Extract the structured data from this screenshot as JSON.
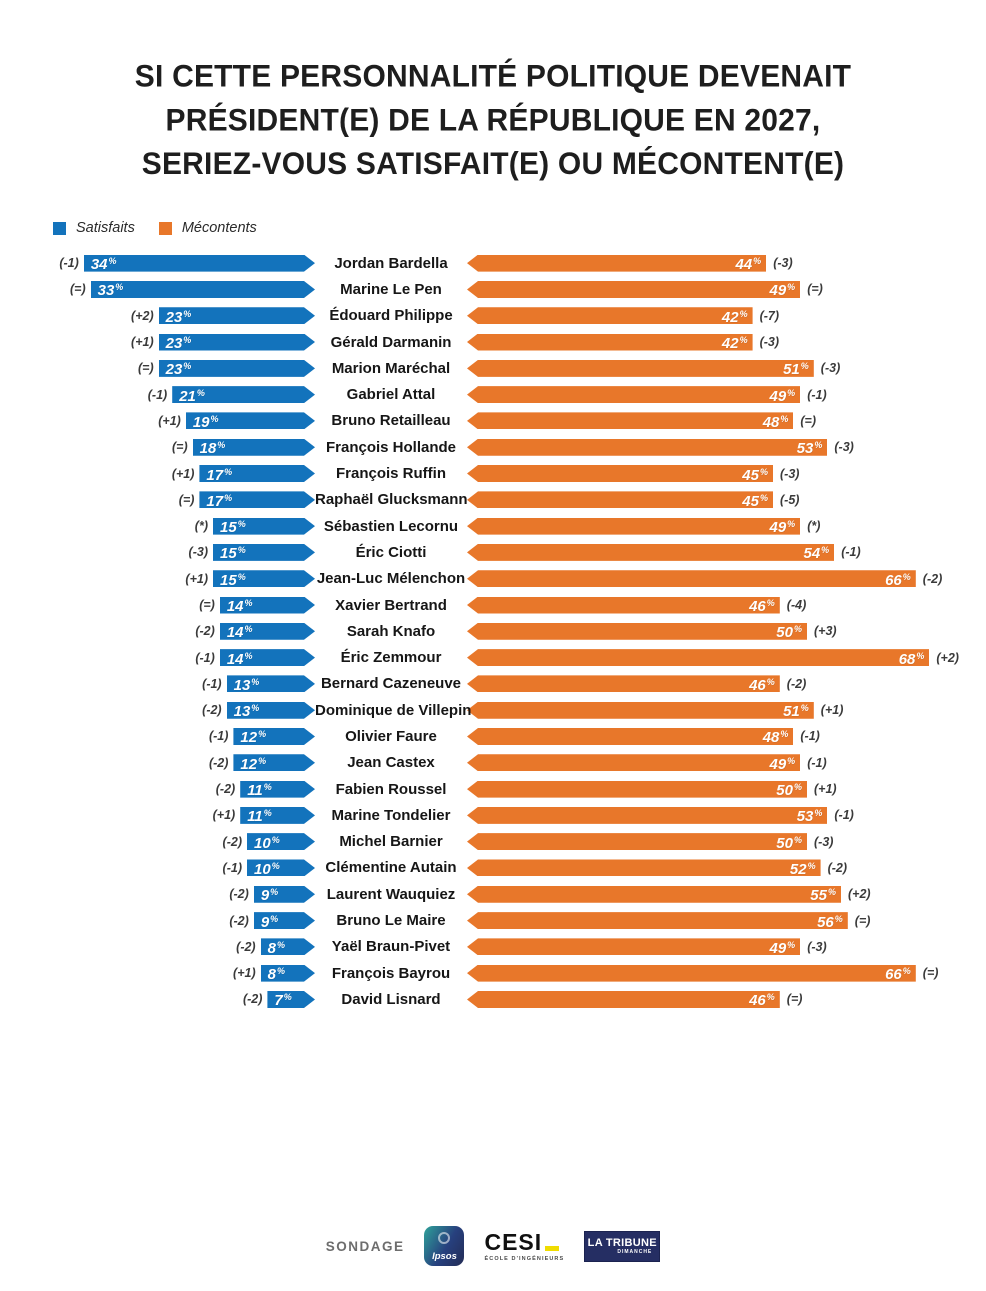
{
  "title": {
    "line1": "SI CETTE PERSONNALITÉ POLITIQUE DEVENAIT",
    "line2": "PRÉSIDENT(E) DE LA RÉPUBLIQUE EN 2027,",
    "line3": "SERIEZ-VOUS SATISFAIT(E) OU MÉCONTENT(E)"
  },
  "legend": {
    "satisfied_label": "Satisfaits",
    "unsatisfied_label": "Mécontents",
    "satisfied_color": "#1373BC",
    "unsatisfied_color": "#E8772A"
  },
  "chart_data": {
    "type": "bar",
    "orientation": "diverging-horizontal",
    "title": "Si cette personnalité politique devenait Président(e) de la République en 2027, seriez-vous satisfait(e) ou mécontent(e)",
    "unit": "%",
    "categories": [
      "Jordan Bardella",
      "Marine Le Pen",
      "Édouard Philippe",
      "Gérald Darmanin",
      "Marion Maréchal",
      "Gabriel Attal",
      "Bruno Retailleau",
      "François Hollande",
      "François Ruffin",
      "Raphaël Glucksmann",
      "Sébastien Lecornu",
      "Éric Ciotti",
      "Jean-Luc Mélenchon",
      "Xavier Bertrand",
      "Sarah Knafo",
      "Éric Zemmour",
      "Bernard Cazeneuve",
      "Dominique de Villepin",
      "Olivier Faure",
      "Jean Castex",
      "Fabien Roussel",
      "Marine Tondelier",
      "Michel Barnier",
      "Clémentine Autain",
      "Laurent Wauquiez",
      "Bruno Le Maire",
      "Yaël Braun-Pivet",
      "François Bayrou",
      "David Lisnard"
    ],
    "series": [
      {
        "name": "Satisfaits",
        "color": "#1373BC",
        "values": [
          34,
          33,
          23,
          23,
          23,
          21,
          19,
          18,
          17,
          17,
          15,
          15,
          15,
          14,
          14,
          14,
          13,
          13,
          12,
          12,
          11,
          11,
          10,
          10,
          9,
          9,
          8,
          8,
          7
        ],
        "changes": [
          "(-1)",
          "(=)",
          "(+2)",
          "(+1)",
          "(=)",
          "(-1)",
          "(+1)",
          "(=)",
          "(+1)",
          "(=)",
          "(*)",
          "(-3)",
          "(+1)",
          "(=)",
          "(-2)",
          "(-1)",
          "(-1)",
          "(-2)",
          "(-1)",
          "(-2)",
          "(-2)",
          "(+1)",
          "(-2)",
          "(-1)",
          "(-2)",
          "(-2)",
          "(-2)",
          "(+1)",
          "(-2)"
        ]
      },
      {
        "name": "Mécontents",
        "color": "#E8772A",
        "values": [
          44,
          49,
          42,
          42,
          51,
          49,
          48,
          53,
          45,
          45,
          49,
          54,
          66,
          46,
          50,
          68,
          46,
          51,
          48,
          49,
          50,
          53,
          50,
          52,
          55,
          56,
          49,
          66,
          46
        ],
        "changes": [
          "(-3)",
          "(=)",
          "(-7)",
          "(-3)",
          "(-3)",
          "(-1)",
          "(=)",
          "(-3)",
          "(-3)",
          "(-5)",
          "(*)",
          "(-1)",
          "(-2)",
          "(-4)",
          "(+3)",
          "(+2)",
          "(-2)",
          "(+1)",
          "(-1)",
          "(-1)",
          "(+1)",
          "(-1)",
          "(-3)",
          "(-2)",
          "(+2)",
          "(=)",
          "(-3)",
          "(=)",
          "(=)"
        ]
      }
    ],
    "xlim": [
      0,
      70
    ],
    "grid": false,
    "legend_position": "top-left"
  },
  "footer": {
    "sondage_label": "SONDAGE",
    "ipsos_logo_text": "Ipsos",
    "cesi_logo_text": "CESI",
    "cesi_logo_subtext": "ÉCOLE D'INGÉNIEURS",
    "tribune_logo_text": "LA TRIBUNE",
    "tribune_logo_subtext": "DIMANCHE"
  }
}
